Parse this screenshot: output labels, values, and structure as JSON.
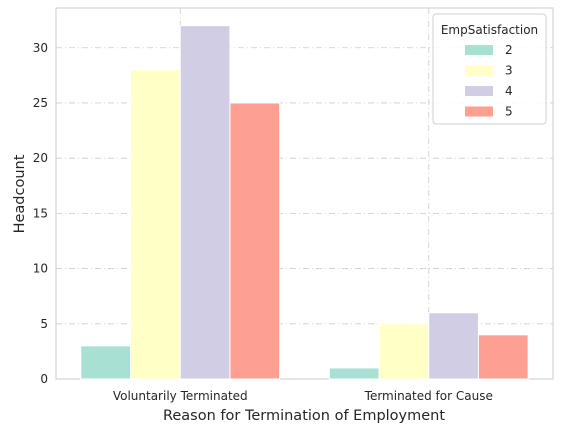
{
  "chart_data": {
    "type": "bar",
    "title": "",
    "xlabel": "Reason for Termination of Employment",
    "ylabel": "Headcount",
    "categories": [
      "Voluntarily Terminated",
      "Terminated for Cause"
    ],
    "series": [
      {
        "name": "2",
        "values": [
          3,
          1
        ],
        "color": "#a8e0d4"
      },
      {
        "name": "3",
        "values": [
          28,
          5
        ],
        "color": "#ffffc6"
      },
      {
        "name": "4",
        "values": [
          32,
          6
        ],
        "color": "#d0cde4"
      },
      {
        "name": "5",
        "values": [
          25,
          4
        ],
        "color": "#fd9f91"
      }
    ],
    "ylim": [
      0,
      33.6
    ],
    "yticks": [
      0,
      5,
      10,
      15,
      20,
      25,
      30
    ],
    "grid": true,
    "legend": {
      "title": "EmpSatisfaction",
      "placement": "top-right"
    }
  }
}
